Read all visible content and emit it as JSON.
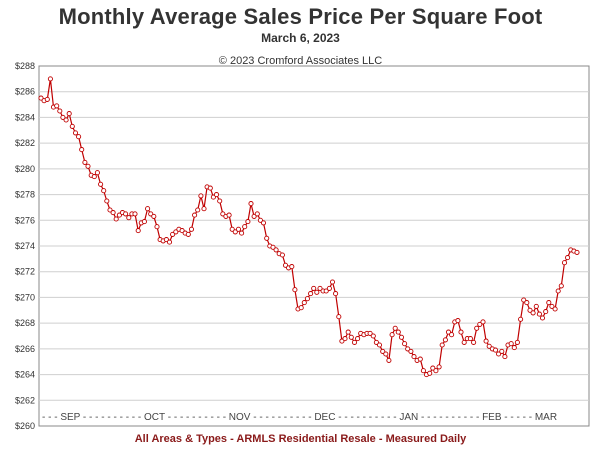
{
  "title": "Monthly Average Sales Price Per Square Foot",
  "date": "March 6, 2023",
  "copyright": "© 2023 Cromford Associates LLC",
  "footer": "All Areas & Types - ARMLS Residential Resale - Measured Daily",
  "x_axis_band": "- - - SEP - - - - - - - - - - OCT - - - - - - - - - - NOV - - - - - - - - - - DEC - - - - - - - - - - JAN - - - - - - - - - - FEB - - - - - MAR",
  "chart_data": {
    "type": "line",
    "title": "Monthly Average Sales Price Per Square Foot",
    "subtitle": "March 6, 2023",
    "xlabel": "",
    "ylabel": "",
    "x_start": "2022-08-26",
    "x_end": "2023-03-06",
    "x_month_labels": [
      "SEP",
      "OCT",
      "NOV",
      "DEC",
      "JAN",
      "FEB",
      "MAR"
    ],
    "ylim": [
      260,
      288
    ],
    "y_ticks": [
      260,
      262,
      264,
      266,
      268,
      270,
      272,
      274,
      276,
      278,
      280,
      282,
      284,
      286,
      288
    ],
    "y_tick_labels": [
      "$260",
      "$262",
      "$264",
      "$266",
      "$268",
      "$270",
      "$272",
      "$274",
      "$276",
      "$278",
      "$280",
      "$282",
      "$284",
      "$286",
      "$288"
    ],
    "grid": true,
    "line_color": "#c00000",
    "series": [
      {
        "values": [
          285.5,
          285.3,
          285.4,
          287.0,
          284.8,
          284.9,
          284.5,
          284.0,
          283.8,
          284.3,
          283.3,
          282.8,
          282.5,
          281.5,
          280.5,
          280.2,
          279.5,
          279.4,
          279.7,
          278.8,
          278.3,
          277.5,
          276.8,
          276.6,
          276.1,
          276.4,
          276.6,
          276.5,
          276.2,
          276.5,
          276.5,
          275.2,
          275.8,
          275.9,
          276.9,
          276.5,
          276.3,
          275.5,
          274.5,
          274.4,
          274.5,
          274.3,
          274.9,
          275.1,
          275.3,
          275.2,
          275.0,
          274.9,
          275.3,
          276.4,
          276.8,
          277.9,
          276.9,
          278.6,
          278.5,
          277.8,
          278.0,
          277.5,
          276.5,
          276.3,
          276.4,
          275.3,
          275.1,
          275.3,
          275.0,
          275.5,
          275.9,
          277.3,
          276.3,
          276.5,
          276.0,
          275.8,
          274.6,
          274.0,
          273.9,
          273.7,
          273.4,
          273.3,
          272.5,
          272.3,
          272.4,
          270.6,
          269.1,
          269.2,
          269.6,
          269.9,
          270.3,
          270.7,
          270.4,
          270.7,
          270.5,
          270.5,
          270.7,
          271.2,
          270.3,
          268.5,
          266.6,
          266.8,
          267.3,
          266.9,
          266.5,
          266.8,
          267.2,
          267.1,
          267.2,
          267.2,
          267.0,
          266.5,
          266.3,
          265.8,
          265.6,
          265.1,
          267.1,
          267.6,
          267.3,
          266.9,
          266.4,
          266.0,
          265.8,
          265.4,
          265.1,
          265.2,
          264.3,
          264.0,
          264.1,
          264.5,
          264.3,
          264.6,
          266.3,
          266.7,
          267.3,
          267.1,
          268.1,
          268.2,
          267.3,
          266.5,
          266.8,
          266.8,
          266.5,
          267.6,
          267.9,
          268.1,
          266.6,
          266.2,
          266.0,
          265.9,
          265.6,
          265.8,
          265.4,
          266.3,
          266.4,
          266.1,
          266.5,
          268.3,
          269.8,
          269.6,
          269.0,
          268.8,
          269.3,
          268.7,
          268.4,
          268.9,
          269.6,
          269.3,
          269.1,
          270.5,
          270.9,
          272.7,
          273.1,
          273.7,
          273.6,
          273.5
        ]
      }
    ]
  }
}
